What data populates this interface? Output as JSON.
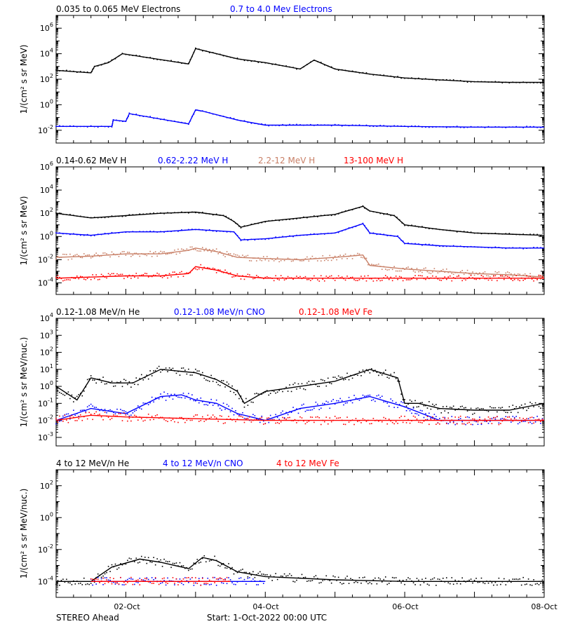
{
  "footer": {
    "spacecraft": "STEREO Ahead",
    "start": "Start:  1-Oct-2022 00:00 UTC"
  },
  "x_axis": {
    "ticks": [
      "02-Oct",
      "04-Oct",
      "06-Oct",
      "08-Oct"
    ],
    "range_days": [
      1,
      8
    ]
  },
  "colors": {
    "black": "#000000",
    "blue": "#0000ff",
    "tan": "#c87f66",
    "red": "#ff0000"
  },
  "chart_data": [
    {
      "type": "scatter",
      "ylabel": "1/(cm² s sr MeV)",
      "ylim_log10": [
        -3,
        7
      ],
      "yticks_exp": [
        -2,
        0,
        2,
        4,
        6
      ],
      "series": [
        {
          "name": "0.035 to 0.065 MeV Electrons",
          "color": "black",
          "x": [
            1.0,
            1.5,
            1.55,
            1.75,
            1.95,
            2.9,
            3.0,
            3.3,
            3.6,
            4.0,
            4.5,
            4.7,
            5.0,
            5.5,
            6.0,
            6.5,
            7.0,
            7.5,
            8.0
          ],
          "y_log10": [
            2.7,
            2.5,
            3.0,
            3.3,
            4.0,
            3.2,
            4.4,
            4.0,
            3.6,
            3.3,
            2.8,
            3.5,
            2.8,
            2.4,
            2.1,
            1.95,
            1.8,
            1.75,
            1.75
          ]
        },
        {
          "name": "0.7 to 4.0 Mev Electrons",
          "color": "blue",
          "x": [
            1.0,
            1.8,
            1.82,
            2.0,
            2.05,
            2.9,
            3.0,
            3.1,
            3.6,
            4.0,
            5.0,
            6.0,
            7.0,
            8.0
          ],
          "y_log10": [
            -1.7,
            -1.7,
            -1.2,
            -1.3,
            -0.7,
            -1.5,
            -0.4,
            -0.5,
            -1.2,
            -1.6,
            -1.6,
            -1.7,
            -1.75,
            -1.75
          ]
        }
      ]
    },
    {
      "type": "scatter",
      "ylabel": "1/(cm² s sr MeV)",
      "ylim_log10": [
        -5,
        6
      ],
      "yticks_exp": [
        -4,
        -2,
        0,
        2,
        4,
        6
      ],
      "series": [
        {
          "name": "0.14-0.62 MeV H",
          "color": "black",
          "x": [
            1.0,
            1.5,
            2.0,
            2.5,
            3.0,
            3.4,
            3.55,
            3.65,
            4.0,
            4.5,
            5.0,
            5.4,
            5.5,
            5.85,
            6.0,
            6.5,
            7.0,
            7.5,
            8.0
          ],
          "y_log10": [
            2.0,
            1.6,
            1.8,
            2.0,
            2.1,
            1.8,
            1.3,
            0.8,
            1.3,
            1.6,
            1.9,
            2.6,
            2.2,
            1.8,
            1.0,
            0.6,
            0.3,
            0.2,
            0.1
          ]
        },
        {
          "name": "0.62-2.22 MeV H",
          "color": "blue",
          "x": [
            1.0,
            1.5,
            2.0,
            2.5,
            3.0,
            3.55,
            3.65,
            4.0,
            4.5,
            5.0,
            5.4,
            5.5,
            5.9,
            6.0,
            6.5,
            7.0,
            7.5,
            8.0
          ],
          "y_log10": [
            0.3,
            0.1,
            0.4,
            0.4,
            0.6,
            0.4,
            -0.3,
            -0.2,
            0.1,
            0.3,
            1.1,
            0.3,
            0.0,
            -0.6,
            -0.8,
            -0.9,
            -1.0,
            -1.0
          ]
        },
        {
          "name": "2.2-12 MeV H",
          "color": "tan",
          "x": [
            1.0,
            1.5,
            2.0,
            2.5,
            2.9,
            3.0,
            3.3,
            3.6,
            4.0,
            4.5,
            5.0,
            5.4,
            5.5,
            6.0,
            6.5,
            7.0,
            7.5,
            8.0
          ],
          "y_log10": [
            -1.8,
            -1.7,
            -1.5,
            -1.5,
            -1.2,
            -1.0,
            -1.3,
            -1.8,
            -1.9,
            -2.0,
            -1.8,
            -1.6,
            -2.5,
            -2.8,
            -3.0,
            -3.2,
            -3.3,
            -3.5
          ]
        },
        {
          "name": "13-100 MeV H",
          "color": "red",
          "x": [
            1.0,
            1.5,
            2.0,
            2.5,
            2.9,
            3.0,
            3.3,
            3.6,
            4.0,
            5.0,
            6.0,
            7.0,
            8.0
          ],
          "y_log10": [
            -3.6,
            -3.5,
            -3.4,
            -3.4,
            -3.2,
            -2.6,
            -2.9,
            -3.4,
            -3.6,
            -3.6,
            -3.6,
            -3.6,
            -3.6
          ]
        }
      ]
    },
    {
      "type": "scatter",
      "ylabel": "1/(cm² s sr MeV/nuc.)",
      "ylim_log10": [
        -3.5,
        4
      ],
      "yticks_exp": [
        -3,
        -2,
        -1,
        0,
        1,
        2,
        3,
        4
      ],
      "series": [
        {
          "name": "0.12-1.08 MeV/n He",
          "color": "black",
          "x": [
            1.0,
            1.3,
            1.5,
            1.8,
            2.1,
            2.5,
            3.0,
            3.3,
            3.6,
            3.7,
            4.0,
            4.5,
            5.0,
            5.5,
            5.9,
            6.0,
            6.2,
            6.5,
            7.0,
            7.5,
            8.0
          ],
          "y_log10": [
            0.0,
            -0.8,
            0.5,
            0.2,
            0.2,
            1.0,
            0.8,
            0.4,
            -0.3,
            -1.0,
            -0.3,
            0.0,
            0.3,
            1.0,
            0.5,
            -1.0,
            -1.0,
            -1.3,
            -1.4,
            -1.4,
            -1.0
          ]
        },
        {
          "name": "0.12-1.08 MeV/n CNO",
          "color": "blue",
          "x": [
            1.0,
            1.5,
            2.0,
            2.5,
            2.8,
            3.0,
            3.3,
            3.6,
            4.0,
            4.5,
            5.0,
            5.5,
            6.0,
            6.5,
            7.0,
            8.0
          ],
          "y_log10": [
            -2.0,
            -1.3,
            -1.6,
            -0.6,
            -0.5,
            -0.8,
            -1.0,
            -1.6,
            -2.0,
            -1.3,
            -1.0,
            -0.6,
            -1.2,
            -2.0,
            -2.0,
            -2.0
          ]
        },
        {
          "name": "0.12-1.08 MeV Fe",
          "color": "red",
          "x": [
            1.0,
            1.5,
            2.0,
            3.0,
            4.0,
            5.0,
            6.0,
            7.0,
            8.0
          ],
          "y_log10": [
            -2.0,
            -1.7,
            -1.8,
            -1.9,
            -2.0,
            -2.0,
            -2.0,
            -2.0,
            -2.0
          ]
        }
      ]
    },
    {
      "type": "scatter",
      "ylabel": "1/(cm² s sr MeV/nuc.)",
      "ylim_log10": [
        -5,
        3
      ],
      "yticks_exp": [
        -4,
        -2,
        0,
        2
      ],
      "series": [
        {
          "name": "4 to 12 MeV/n He",
          "color": "black",
          "x": [
            1.0,
            1.5,
            1.8,
            2.2,
            2.5,
            2.9,
            3.1,
            3.3,
            3.6,
            4.0,
            5.0,
            6.0,
            7.0,
            8.0
          ],
          "y_log10": [
            -4.0,
            -4.0,
            -3.1,
            -2.6,
            -2.8,
            -3.2,
            -2.5,
            -2.7,
            -3.4,
            -3.7,
            -3.9,
            -4.0,
            -4.0,
            -4.0
          ]
        },
        {
          "name": "4 to 12 MeV/n CNO",
          "color": "blue",
          "x": [
            1.5,
            2.0,
            2.5,
            3.0,
            3.5,
            4.0
          ],
          "y_log10": [
            -4.0,
            -4.0,
            -4.0,
            -4.0,
            -4.0,
            -4.0
          ]
        },
        {
          "name": "4 to 12 MeV Fe",
          "color": "red",
          "x": [
            1.5,
            2.0,
            2.5,
            3.0,
            3.5
          ],
          "y_log10": [
            -4.0,
            -4.0,
            -4.0,
            -4.0,
            -4.0
          ]
        }
      ]
    }
  ]
}
